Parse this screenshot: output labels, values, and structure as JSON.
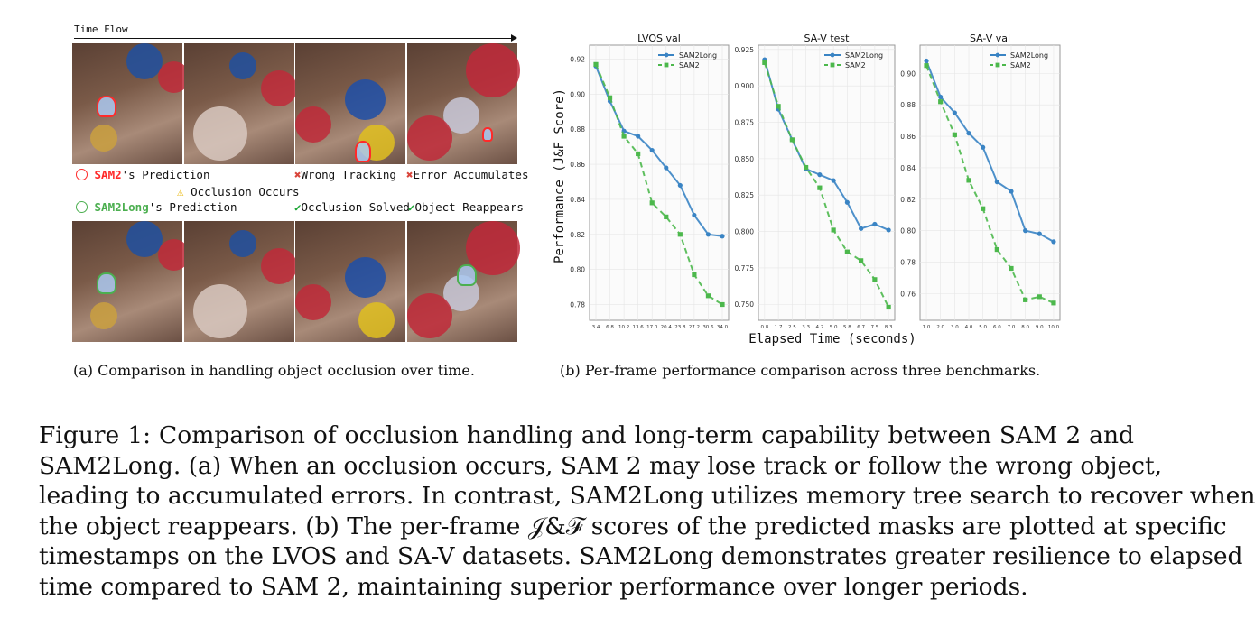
{
  "panel_a": {
    "time_flow_label": "Time Flow",
    "legend": {
      "sam2_name": "SAM2",
      "sam2_suffix": "'s Prediction",
      "sam2long_name": "SAM2Long",
      "sam2long_suffix": "'s Prediction",
      "occlusion_occurs": "Occlusion Occurs",
      "wrong_tracking": "Wrong Tracking",
      "error_accumulates": "Error Accumulates",
      "occlusion_solved": "Occlusion Solved",
      "object_reappears": "Object Reappears"
    },
    "caption": "(a) Comparison in handling object occlusion over time."
  },
  "panel_b": {
    "caption": "(b) Per-frame performance comparison across three benchmarks.",
    "ylabel": "Performance (J&F Score)",
    "xlabel": "Elapsed Time (seconds)"
  },
  "colors": {
    "sam2long": "#3a84c4",
    "sam2": "#4cb84c",
    "red": "#ff2a2a",
    "green": "#4caf50"
  },
  "chart_data": [
    {
      "type": "line",
      "title": "LVOS val",
      "x": [
        3.4,
        6.8,
        10.2,
        13.6,
        17.0,
        20.4,
        23.8,
        27.2,
        30.6,
        34.0
      ],
      "x_tick_labels": [
        "3.4",
        "6.8",
        "10.2",
        "13.6",
        "17.0",
        "20.4",
        "23.8",
        "27.2",
        "30.6",
        "34.0"
      ],
      "y_ticks": [
        "0.78",
        "0.80",
        "0.82",
        "0.84",
        "0.86",
        "0.88",
        "0.90",
        "0.92"
      ],
      "ylim": [
        0.771,
        0.928
      ],
      "grid": true,
      "legend": "top-right",
      "series": [
        {
          "name": "SAM2Long",
          "values": [
            0.916,
            0.896,
            0.879,
            0.876,
            0.868,
            0.858,
            0.848,
            0.831,
            0.82,
            0.819
          ]
        },
        {
          "name": "SAM2",
          "values": [
            0.917,
            0.898,
            0.876,
            0.866,
            0.838,
            0.83,
            0.82,
            0.797,
            0.785,
            0.78
          ]
        }
      ]
    },
    {
      "type": "line",
      "title": "SA-V test",
      "x": [
        0.8,
        1.7,
        2.5,
        3.3,
        4.2,
        5.0,
        5.8,
        6.7,
        7.5,
        8.3
      ],
      "x_tick_labels": [
        "0.8",
        "1.7",
        "2.5",
        "3.3",
        "4.2",
        "5.0",
        "5.8",
        "6.7",
        "7.5",
        "8.3"
      ],
      "y_ticks": [
        "0.750",
        "0.775",
        "0.800",
        "0.825",
        "0.850",
        "0.875",
        "0.900",
        "0.925"
      ],
      "ylim": [
        0.739,
        0.928
      ],
      "grid": true,
      "legend": "top-right",
      "series": [
        {
          "name": "SAM2Long",
          "values": [
            0.918,
            0.884,
            0.863,
            0.843,
            0.839,
            0.835,
            0.82,
            0.802,
            0.805,
            0.801
          ]
        },
        {
          "name": "SAM2",
          "values": [
            0.916,
            0.886,
            0.863,
            0.844,
            0.83,
            0.801,
            0.786,
            0.78,
            0.767,
            0.748
          ]
        }
      ]
    },
    {
      "type": "line",
      "title": "SA-V val",
      "x": [
        1.0,
        2.0,
        3.0,
        4.0,
        5.0,
        6.0,
        7.0,
        8.0,
        9.0,
        10.0
      ],
      "x_tick_labels": [
        "1.0",
        "2.0",
        "3.0",
        "4.0",
        "5.0",
        "6.0",
        "7.0",
        "8.0",
        "9.0",
        "10.0"
      ],
      "y_ticks": [
        "0.76",
        "0.78",
        "0.80",
        "0.82",
        "0.84",
        "0.86",
        "0.88",
        "0.90"
      ],
      "ylim": [
        0.743,
        0.918
      ],
      "grid": true,
      "legend": "top-right",
      "series": [
        {
          "name": "SAM2Long",
          "values": [
            0.908,
            0.885,
            0.875,
            0.862,
            0.853,
            0.831,
            0.825,
            0.8,
            0.798,
            0.793
          ]
        },
        {
          "name": "SAM2",
          "values": [
            0.905,
            0.882,
            0.861,
            0.832,
            0.814,
            0.788,
            0.776,
            0.756,
            0.758,
            0.754
          ]
        }
      ]
    }
  ],
  "figure_caption": {
    "lines": [
      "Figure 1:  Comparison of occlusion handling and long-term capability between SAM 2 and",
      "SAM2Long. (a) When an occlusion occurs, SAM 2 may lose track or follow the wrong object,",
      "leading to accumulated errors. In contrast, SAM2Long utilizes memory tree search to recover when",
      "the object reappears. (b) The per-frame 𝒥&ℱ scores of the predicted masks are plotted at specific",
      "timestamps on the LVOS and SA-V datasets. SAM2Long demonstrates greater resilience to elapsed",
      "time compared to SAM 2, maintaining superior performance over longer periods."
    ]
  }
}
